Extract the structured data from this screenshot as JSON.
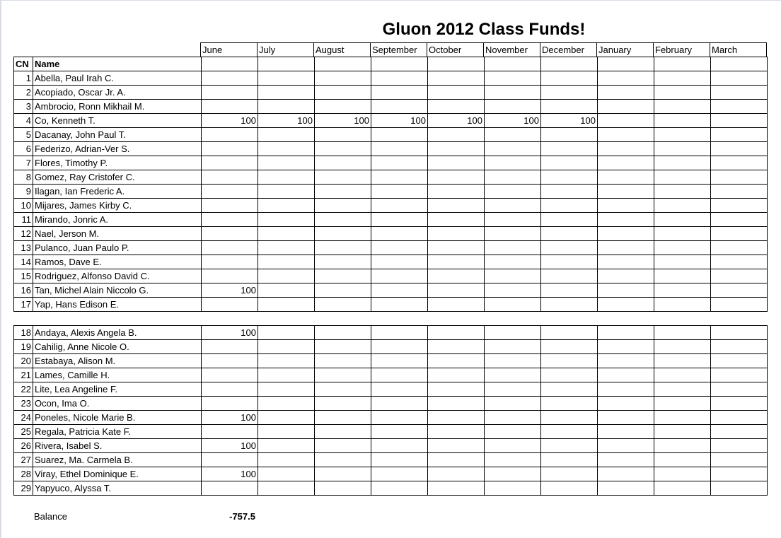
{
  "title": "Gluon 2012 Class Funds!",
  "months": [
    "June",
    "July",
    "August",
    "September",
    "October",
    "November",
    "December",
    "January",
    "February",
    "March"
  ],
  "headers": {
    "cn": "CN",
    "name": "Name"
  },
  "group1": [
    {
      "cn": "1",
      "name": "Abella, Paul Irah C.",
      "payments": [
        "",
        "",
        "",
        "",
        "",
        "",
        "",
        "",
        "",
        ""
      ]
    },
    {
      "cn": "2",
      "name": "Acopiado, Oscar Jr. A.",
      "payments": [
        "",
        "",
        "",
        "",
        "",
        "",
        "",
        "",
        "",
        ""
      ]
    },
    {
      "cn": "3",
      "name": "Ambrocio, Ronn Mikhail M.",
      "payments": [
        "",
        "",
        "",
        "",
        "",
        "",
        "",
        "",
        "",
        ""
      ]
    },
    {
      "cn": "4",
      "name": "Co, Kenneth T.",
      "payments": [
        "100",
        "100",
        "100",
        "100",
        "100",
        "100",
        "100",
        "",
        "",
        ""
      ]
    },
    {
      "cn": "5",
      "name": "Dacanay, John Paul T.",
      "payments": [
        "",
        "",
        "",
        "",
        "",
        "",
        "",
        "",
        "",
        ""
      ]
    },
    {
      "cn": "6",
      "name": "Federizo, Adrian-Ver S.",
      "payments": [
        "",
        "",
        "",
        "",
        "",
        "",
        "",
        "",
        "",
        ""
      ]
    },
    {
      "cn": "7",
      "name": "Flores, Timothy P.",
      "payments": [
        "",
        "",
        "",
        "",
        "",
        "",
        "",
        "",
        "",
        ""
      ]
    },
    {
      "cn": "8",
      "name": "Gomez, Ray Cristofer C.",
      "payments": [
        "",
        "",
        "",
        "",
        "",
        "",
        "",
        "",
        "",
        ""
      ]
    },
    {
      "cn": "9",
      "name": "Ilagan, Ian Frederic A.",
      "payments": [
        "",
        "",
        "",
        "",
        "",
        "",
        "",
        "",
        "",
        ""
      ]
    },
    {
      "cn": "10",
      "name": "Mijares, James Kirby C.",
      "payments": [
        "",
        "",
        "",
        "",
        "",
        "",
        "",
        "",
        "",
        ""
      ]
    },
    {
      "cn": "11",
      "name": "Mirando, Jonric A.",
      "payments": [
        "",
        "",
        "",
        "",
        "",
        "",
        "",
        "",
        "",
        ""
      ]
    },
    {
      "cn": "12",
      "name": "Nael, Jerson M.",
      "payments": [
        "",
        "",
        "",
        "",
        "",
        "",
        "",
        "",
        "",
        ""
      ]
    },
    {
      "cn": "13",
      "name": "Pulanco, Juan Paulo P.",
      "payments": [
        "",
        "",
        "",
        "",
        "",
        "",
        "",
        "",
        "",
        ""
      ]
    },
    {
      "cn": "14",
      "name": "Ramos, Dave E.",
      "payments": [
        "",
        "",
        "",
        "",
        "",
        "",
        "",
        "",
        "",
        ""
      ]
    },
    {
      "cn": "15",
      "name": "Rodriguez, Alfonso David C.",
      "payments": [
        "",
        "",
        "",
        "",
        "",
        "",
        "",
        "",
        "",
        ""
      ]
    },
    {
      "cn": "16",
      "name": "Tan, Michel Alain Niccolo G.",
      "payments": [
        "100",
        "",
        "",
        "",
        "",
        "",
        "",
        "",
        "",
        ""
      ]
    },
    {
      "cn": "17",
      "name": "Yap, Hans Edison E.",
      "payments": [
        "",
        "",
        "",
        "",
        "",
        "",
        "",
        "",
        "",
        ""
      ]
    }
  ],
  "group2": [
    {
      "cn": "18",
      "name": "Andaya, Alexis Angela B.",
      "payments": [
        "100",
        "",
        "",
        "",
        "",
        "",
        "",
        "",
        "",
        ""
      ]
    },
    {
      "cn": "19",
      "name": "Cahilig, Anne Nicole O.",
      "payments": [
        "",
        "",
        "",
        "",
        "",
        "",
        "",
        "",
        "",
        ""
      ]
    },
    {
      "cn": "20",
      "name": "Estabaya, Alison M.",
      "payments": [
        "",
        "",
        "",
        "",
        "",
        "",
        "",
        "",
        "",
        ""
      ]
    },
    {
      "cn": "21",
      "name": "Lames, Camille H.",
      "payments": [
        "",
        "",
        "",
        "",
        "",
        "",
        "",
        "",
        "",
        ""
      ]
    },
    {
      "cn": "22",
      "name": "Lite, Lea Angeline F.",
      "payments": [
        "",
        "",
        "",
        "",
        "",
        "",
        "",
        "",
        "",
        ""
      ]
    },
    {
      "cn": "23",
      "name": "Ocon, Ima O.",
      "payments": [
        "",
        "",
        "",
        "",
        "",
        "",
        "",
        "",
        "",
        ""
      ]
    },
    {
      "cn": "24",
      "name": "Poneles, Nicole Marie B.",
      "payments": [
        "100",
        "",
        "",
        "",
        "",
        "",
        "",
        "",
        "",
        ""
      ]
    },
    {
      "cn": "25",
      "name": "Regala, Patricia Kate F.",
      "payments": [
        "",
        "",
        "",
        "",
        "",
        "",
        "",
        "",
        "",
        ""
      ]
    },
    {
      "cn": "26",
      "name": "Rivera, Isabel S.",
      "payments": [
        "100",
        "",
        "",
        "",
        "",
        "",
        "",
        "",
        "",
        ""
      ]
    },
    {
      "cn": "27",
      "name": "Suarez, Ma. Carmela B.",
      "payments": [
        "",
        "",
        "",
        "",
        "",
        "",
        "",
        "",
        "",
        ""
      ]
    },
    {
      "cn": "28",
      "name": "Viray, Ethel Dominique E.",
      "payments": [
        "100",
        "",
        "",
        "",
        "",
        "",
        "",
        "",
        "",
        ""
      ]
    },
    {
      "cn": "29",
      "name": "Yapyuco, Alyssa T.",
      "payments": [
        "",
        "",
        "",
        "",
        "",
        "",
        "",
        "",
        "",
        ""
      ]
    }
  ],
  "balance": {
    "label": "Balance",
    "value": "-757.5"
  }
}
